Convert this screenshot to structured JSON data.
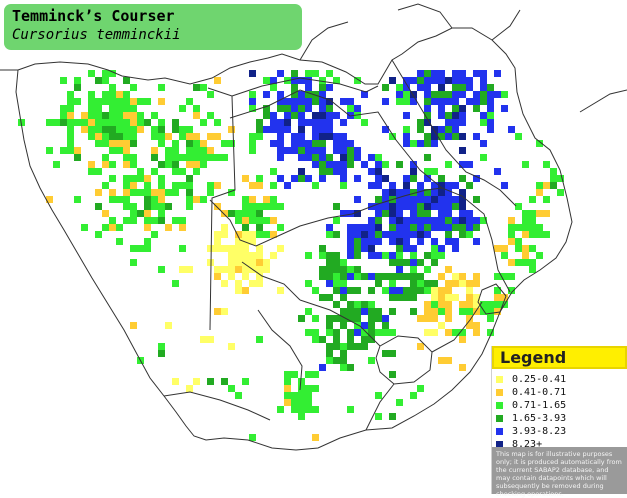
{
  "title": {
    "common_name": "Temminck’s Courser",
    "scientific_name": "Cursorius temminckii"
  },
  "legend": {
    "heading": "Legend",
    "items": [
      {
        "label": "0.25-0.41",
        "color": "#ffff66"
      },
      {
        "label": "0.41-0.71",
        "color": "#ffcc33"
      },
      {
        "label": "0.71-1.65",
        "color": "#33ee33"
      },
      {
        "label": "1.65-3.93",
        "color": "#22aa22"
      },
      {
        "label": "3.93-8.23",
        "color": "#2233ee"
      },
      {
        "label": "8.23+",
        "color": "#112288"
      }
    ],
    "disclaimer": "This map is for illustrative purposes only; it is produced automatically from the current SABAP2 database, and may contain datapoints which will subsequently be removed during checking operations."
  },
  "colors": {
    "title_background": "#6fd56f",
    "legend_header": "#ffef00",
    "disclaimer_background": "#9a9a9a",
    "outline": "#333333"
  }
}
